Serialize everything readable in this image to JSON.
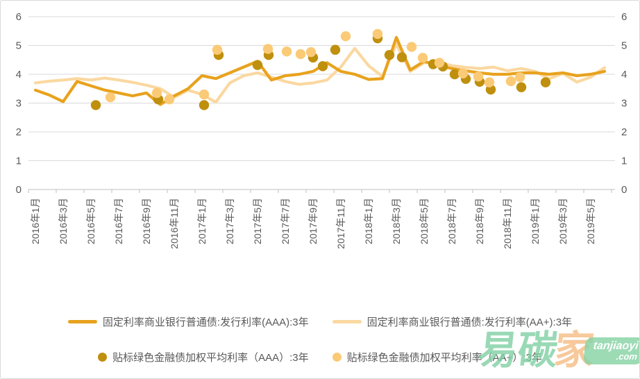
{
  "chart_data": {
    "type": "line",
    "title": "",
    "xlabel": "",
    "ylabel": "",
    "ylim": [
      0,
      6
    ],
    "y_ticks": [
      0,
      1,
      2,
      3,
      4,
      5,
      6
    ],
    "y_axis_sides": "both",
    "grid": true,
    "legend_position": "bottom",
    "x_unit": "month index, 0 = 2016-01, 41 = 2019-06, one point per month",
    "x_tick_labels": [
      "2016年1月",
      "2016年3月",
      "2016年5月",
      "2016年7月",
      "2016年9月",
      "2016年11月",
      "2017年1月",
      "2017年3月",
      "2017年5月",
      "2017年7月",
      "2017年9月",
      "2017年11月",
      "2018年1月",
      "2018年3月",
      "2018年5月",
      "2018年7月",
      "2018年9月",
      "2018年11月",
      "2019年1月",
      "2019年3月",
      "2019年5月"
    ],
    "x_tick_label_month_indexes": [
      0,
      2,
      4,
      6,
      8,
      10,
      12,
      14,
      16,
      18,
      20,
      22,
      24,
      26,
      28,
      30,
      32,
      34,
      36,
      38,
      40
    ],
    "series": [
      {
        "name": "固定利率商业银行普通债:发行利率(AAA):3年",
        "type": "line",
        "color": "#E8A21D",
        "values": [
          3.45,
          3.28,
          3.05,
          3.75,
          3.6,
          3.45,
          3.35,
          3.25,
          3.35,
          2.95,
          3.25,
          3.5,
          3.95,
          3.85,
          4.05,
          4.25,
          4.45,
          3.8,
          3.95,
          4.0,
          4.1,
          4.4,
          4.1,
          4.0,
          3.82,
          3.85,
          5.28,
          4.15,
          4.45,
          4.3,
          4.2,
          4.12,
          4.05,
          4.0,
          4.0,
          4.05,
          4.05,
          4.0,
          4.05,
          3.95,
          4.0,
          4.1
        ]
      },
      {
        "name": "固定利率商业银行普通债:发行利率(AA+):3年",
        "type": "line",
        "color": "#FAD8A0",
        "values": [
          3.7,
          3.76,
          3.8,
          3.85,
          3.8,
          3.87,
          3.8,
          3.72,
          3.62,
          3.5,
          3.2,
          3.45,
          3.3,
          3.03,
          3.7,
          3.95,
          4.05,
          3.9,
          3.75,
          3.65,
          3.7,
          3.8,
          4.25,
          4.9,
          4.3,
          3.92,
          5.05,
          4.1,
          4.4,
          4.42,
          4.3,
          4.24,
          4.2,
          4.25,
          4.12,
          4.2,
          4.1,
          3.85,
          4.03,
          3.73,
          3.9,
          4.23
        ]
      },
      {
        "name": "贴标绿色金融债加权平均利率（AAA）:3年",
        "type": "scatter",
        "color": "#BF8F0E",
        "points": [
          {
            "x": 4.35,
            "v": 2.93
          },
          {
            "x": 8.85,
            "v": 3.13
          },
          {
            "x": 12.15,
            "v": 2.93
          },
          {
            "x": 13.2,
            "v": 4.67
          },
          {
            "x": 16.0,
            "v": 4.32
          },
          {
            "x": 16.8,
            "v": 4.67
          },
          {
            "x": 20.0,
            "v": 4.58
          },
          {
            "x": 20.7,
            "v": 4.28
          },
          {
            "x": 21.6,
            "v": 4.85
          },
          {
            "x": 24.65,
            "v": 5.25
          },
          {
            "x": 25.5,
            "v": 4.67
          },
          {
            "x": 26.4,
            "v": 4.59
          },
          {
            "x": 28.65,
            "v": 4.35
          },
          {
            "x": 29.35,
            "v": 4.27
          },
          {
            "x": 30.2,
            "v": 4.0
          },
          {
            "x": 31.0,
            "v": 3.84
          },
          {
            "x": 32.0,
            "v": 3.74
          },
          {
            "x": 32.8,
            "v": 3.47
          },
          {
            "x": 35.0,
            "v": 3.55
          },
          {
            "x": 36.75,
            "v": 3.72
          }
        ]
      },
      {
        "name": "贴标绿色金融债加权平均利率（AA+）:3年",
        "type": "scatter",
        "color": "#FBCA77",
        "points": [
          {
            "x": 5.4,
            "v": 3.2
          },
          {
            "x": 8.75,
            "v": 3.35
          },
          {
            "x": 9.65,
            "v": 3.13
          },
          {
            "x": 12.15,
            "v": 3.3
          },
          {
            "x": 13.1,
            "v": 4.85
          },
          {
            "x": 16.75,
            "v": 4.88
          },
          {
            "x": 18.1,
            "v": 4.79
          },
          {
            "x": 19.1,
            "v": 4.7
          },
          {
            "x": 19.85,
            "v": 4.77
          },
          {
            "x": 22.35,
            "v": 5.32
          },
          {
            "x": 24.65,
            "v": 5.4
          },
          {
            "x": 27.1,
            "v": 4.95
          },
          {
            "x": 27.9,
            "v": 4.57
          },
          {
            "x": 29.1,
            "v": 4.4
          },
          {
            "x": 30.8,
            "v": 4.03
          },
          {
            "x": 31.9,
            "v": 3.92
          },
          {
            "x": 32.7,
            "v": 3.72
          },
          {
            "x": 34.25,
            "v": 3.76
          },
          {
            "x": 34.9,
            "v": 3.9
          }
        ]
      }
    ]
  },
  "style_colors": {
    "gridline": "#D9D9D9",
    "axis_line": "#BFBFBF",
    "axis_text": "#595959",
    "background": "#FFFFFF"
  },
  "watermark": {
    "char1": "易",
    "char2": "碳",
    "char3": "家",
    "box_line1": "tanjiaoyi",
    "box_line2": ".com"
  }
}
